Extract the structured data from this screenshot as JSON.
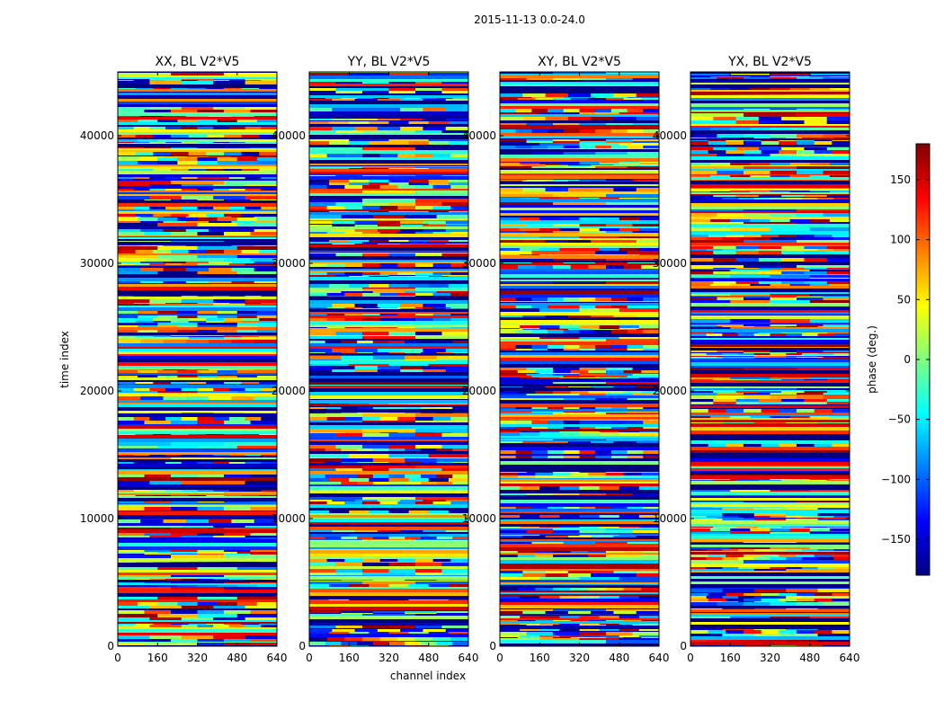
{
  "chart_data": {
    "type": "heatmap",
    "suptitle": "2015-11-13 0.0-24.0",
    "xlabel": "channel index",
    "ylabel": "time index",
    "x_range": [
      0,
      640
    ],
    "y_range": [
      0,
      45000
    ],
    "x_ticks": [
      0,
      160,
      320,
      480,
      640
    ],
    "y_ticks": [
      0,
      10000,
      20000,
      30000,
      40000
    ],
    "colormap": "jet",
    "colors": [
      "#00007f",
      "#0000ff",
      "#007fff",
      "#00ffff",
      "#7fff7f",
      "#ffff00",
      "#ff7f00",
      "#ff0000",
      "#7f0000"
    ],
    "panels": [
      {
        "title": "XX, BL V2*V5",
        "seed": 11
      },
      {
        "title": "YY, BL V2*V5",
        "seed": 23
      },
      {
        "title": "XY, BL V2*V5",
        "seed": 37
      },
      {
        "title": "YX, BL V2*V5",
        "seed": 53
      }
    ],
    "colorbar": {
      "label": "phase (deg.)",
      "range": [
        -180,
        180
      ],
      "ticks": [
        -150,
        -100,
        -50,
        0,
        50,
        100,
        150
      ],
      "tick_labels": [
        "−150",
        "−100",
        "−50",
        "0",
        "50",
        "100",
        "150"
      ]
    }
  }
}
